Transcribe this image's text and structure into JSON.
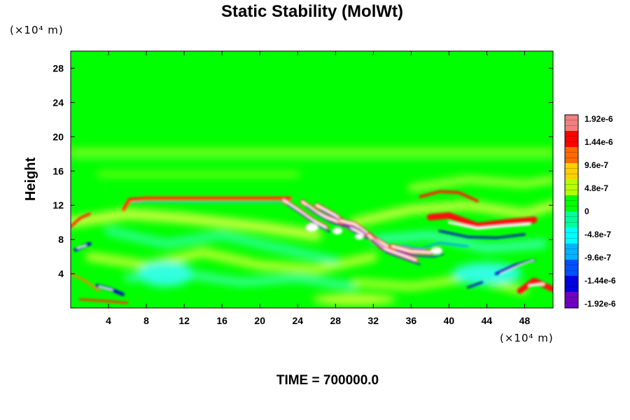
{
  "chart_data": {
    "type": "heatmap",
    "title": "Static Stability (MolWt)",
    "ylabel": "Height",
    "xlabel": "",
    "x_unit": "(×10⁴ m)",
    "y_unit": "(×10⁴ m)",
    "xlim": [
      0,
      51
    ],
    "ylim": [
      0,
      30
    ],
    "x_ticks": [
      4,
      8,
      12,
      16,
      20,
      24,
      28,
      32,
      36,
      40,
      44,
      48
    ],
    "y_ticks": [
      4,
      8,
      12,
      16,
      20,
      24,
      28
    ],
    "colorbar": {
      "labels": [
        "1.92e-6",
        "1.44e-6",
        "9.6e-7",
        "4.8e-7",
        "0",
        "-4.8e-7",
        "-9.6e-7",
        "-1.44e-6",
        "-1.92e-6"
      ],
      "values": [
        1.92e-06,
        1.44e-06,
        9.6e-07,
        4.8e-07,
        0,
        -4.8e-07,
        -9.6e-07,
        -1.44e-06,
        -1.92e-06
      ],
      "colors": [
        "#f08080",
        "#ff0000",
        "#ff6a00",
        "#ffd000",
        "#b4ff00",
        "#00ff00",
        "#00ff9a",
        "#00ffff",
        "#00b4ff",
        "#0050ff",
        "#0000e0",
        "#7000c0"
      ],
      "min": -1.92e-06,
      "max": 1.92e-06
    },
    "background_color": "#00ff00",
    "features": [
      {
        "kind": "band",
        "x": [
          5.6,
          23.2
        ],
        "y": 12.7,
        "sign": "positive"
      },
      {
        "kind": "band",
        "x": [
          0,
          51
        ],
        "y": 18.3,
        "sign": "weak-positive"
      },
      {
        "kind": "band",
        "x": [
          3,
          24
        ],
        "y": 15.6,
        "sign": "weak-positive"
      },
      {
        "kind": "wave",
        "x": [
          22.5,
          38
        ],
        "y": [
          12.5,
          5.5
        ],
        "sign": "mixed"
      },
      {
        "kind": "wave",
        "x": [
          37,
          51
        ],
        "y": [
          11,
          8
        ],
        "sign": "mixed"
      },
      {
        "kind": "blob",
        "x": 1.2,
        "y": 7.2,
        "sign": "mixed"
      },
      {
        "kind": "blob",
        "x": 4,
        "y": 2.2,
        "sign": "mixed"
      },
      {
        "kind": "blob",
        "x": 49,
        "y": 2.6,
        "sign": "positive"
      },
      {
        "kind": "blob",
        "x": 48,
        "y": 5,
        "sign": "mixed"
      }
    ]
  },
  "time_label": "TIME = 700000.0"
}
